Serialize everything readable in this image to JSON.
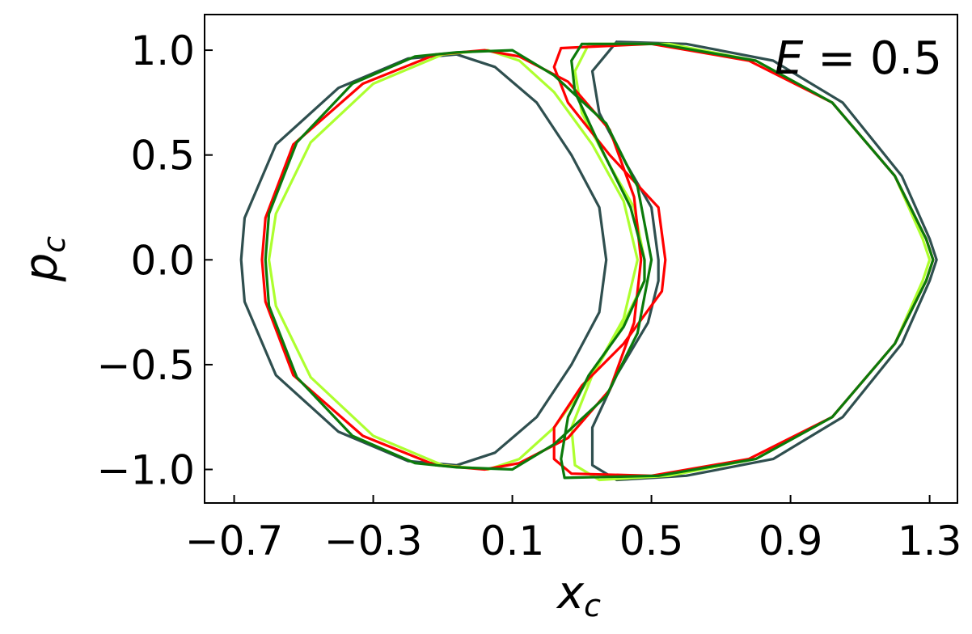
{
  "chart_data": {
    "type": "scatter",
    "xlabel": "x",
    "xlabel_sub": "c",
    "ylabel": "p",
    "ylabel_sub": "c",
    "xlim": [
      -0.785,
      1.38
    ],
    "ylim": [
      -1.16,
      1.17
    ],
    "xticks": [
      -0.7,
      -0.3,
      0.1,
      0.5,
      0.9,
      1.3
    ],
    "xtick_labels": [
      "−0.7",
      "−0.3",
      "0.1",
      "0.5",
      "0.9",
      "1.3"
    ],
    "yticks": [
      -1.0,
      -0.5,
      0.0,
      0.5,
      1.0
    ],
    "ytick_labels": [
      "−1.0",
      "−0.5",
      "0.0",
      "0.5",
      "1.0"
    ],
    "grid": false,
    "annotation": {
      "var": "E",
      "text": " = 0.5"
    },
    "series": [
      {
        "color": "#2f4f4f",
        "left_loop": [
          [
            -0.06,
            -0.98
          ],
          [
            -0.2,
            -0.96
          ],
          [
            -0.4,
            -0.82
          ],
          [
            -0.58,
            -0.55
          ],
          [
            -0.67,
            -0.2
          ],
          [
            -0.68,
            0.0
          ],
          [
            -0.67,
            0.2
          ],
          [
            -0.58,
            0.55
          ],
          [
            -0.4,
            0.82
          ],
          [
            -0.2,
            0.96
          ],
          [
            -0.06,
            0.98
          ],
          [
            0.05,
            0.92
          ],
          [
            0.17,
            0.75
          ],
          [
            0.27,
            0.5
          ],
          [
            0.35,
            0.25
          ],
          [
            0.37,
            0.0
          ],
          [
            0.35,
            -0.25
          ],
          [
            0.27,
            -0.5
          ],
          [
            0.17,
            -0.75
          ],
          [
            0.05,
            -0.92
          ],
          [
            -0.06,
            -0.98
          ]
        ],
        "right_loop": [
          [
            0.4,
            1.04
          ],
          [
            0.6,
            1.03
          ],
          [
            0.85,
            0.95
          ],
          [
            1.05,
            0.75
          ],
          [
            1.22,
            0.4
          ],
          [
            1.3,
            0.1
          ],
          [
            1.32,
            0.0
          ],
          [
            1.3,
            -0.1
          ],
          [
            1.22,
            -0.4
          ],
          [
            1.05,
            -0.75
          ],
          [
            0.85,
            -0.95
          ],
          [
            0.6,
            -1.03
          ],
          [
            0.4,
            -1.05
          ],
          [
            0.33,
            -0.98
          ],
          [
            0.33,
            -0.8
          ],
          [
            0.4,
            -0.55
          ],
          [
            0.49,
            -0.3
          ],
          [
            0.52,
            -0.1
          ],
          [
            0.52,
            0.0
          ],
          [
            0.5,
            0.25
          ],
          [
            0.43,
            0.45
          ],
          [
            0.35,
            0.7
          ],
          [
            0.33,
            0.9
          ],
          [
            0.4,
            1.04
          ]
        ]
      },
      {
        "color": "#adff2f",
        "left_loop": [
          [
            0.03,
            -1.0
          ],
          [
            -0.1,
            -0.98
          ],
          [
            -0.3,
            -0.84
          ],
          [
            -0.48,
            -0.56
          ],
          [
            -0.58,
            -0.22
          ],
          [
            -0.6,
            0.0
          ],
          [
            -0.58,
            0.22
          ],
          [
            -0.48,
            0.56
          ],
          [
            -0.3,
            0.84
          ],
          [
            -0.1,
            0.98
          ],
          [
            0.03,
            1.0
          ],
          [
            0.12,
            0.95
          ],
          [
            0.22,
            0.8
          ],
          [
            0.33,
            0.55
          ],
          [
            0.42,
            0.28
          ],
          [
            0.46,
            0.0
          ],
          [
            0.42,
            -0.28
          ],
          [
            0.33,
            -0.55
          ],
          [
            0.22,
            -0.8
          ],
          [
            0.12,
            -0.95
          ],
          [
            0.03,
            -1.0
          ]
        ],
        "right_loop": [
          [
            0.32,
            1.03
          ],
          [
            0.55,
            1.03
          ],
          [
            0.8,
            0.95
          ],
          [
            1.02,
            0.75
          ],
          [
            1.2,
            0.4
          ],
          [
            1.28,
            0.1
          ],
          [
            1.3,
            0.0
          ],
          [
            1.28,
            -0.1
          ],
          [
            1.2,
            -0.4
          ],
          [
            1.02,
            -0.75
          ],
          [
            0.8,
            -0.95
          ],
          [
            0.55,
            -1.03
          ],
          [
            0.35,
            -1.05
          ],
          [
            0.28,
            -0.98
          ],
          [
            0.27,
            -0.8
          ],
          [
            0.33,
            -0.55
          ],
          [
            0.42,
            -0.3
          ],
          [
            0.48,
            -0.1
          ],
          [
            0.48,
            0.0
          ],
          [
            0.45,
            0.25
          ],
          [
            0.38,
            0.45
          ],
          [
            0.3,
            0.7
          ],
          [
            0.28,
            0.9
          ],
          [
            0.32,
            1.03
          ]
        ]
      },
      {
        "color": "#ff0000",
        "left_loop": [
          [
            0.02,
            -1.0
          ],
          [
            -0.12,
            -0.98
          ],
          [
            -0.33,
            -0.84
          ],
          [
            -0.53,
            -0.55
          ],
          [
            -0.61,
            -0.2
          ],
          [
            -0.62,
            0.0
          ],
          [
            -0.61,
            0.2
          ],
          [
            -0.53,
            0.55
          ],
          [
            -0.33,
            0.84
          ],
          [
            -0.12,
            0.98
          ],
          [
            0.02,
            1.0
          ],
          [
            0.12,
            0.97
          ],
          [
            0.26,
            0.85
          ],
          [
            0.38,
            0.62
          ],
          [
            0.45,
            0.3
          ],
          [
            0.47,
            0.0
          ],
          [
            0.45,
            -0.3
          ],
          [
            0.38,
            -0.62
          ],
          [
            0.26,
            -0.85
          ],
          [
            0.12,
            -0.97
          ],
          [
            0.02,
            -1.0
          ]
        ],
        "right_loop": [
          [
            0.24,
            1.01
          ],
          [
            0.5,
            1.03
          ],
          [
            0.78,
            0.95
          ],
          [
            1.02,
            0.75
          ],
          [
            1.2,
            0.4
          ],
          [
            1.29,
            0.1
          ],
          [
            1.31,
            0.0
          ],
          [
            1.29,
            -0.1
          ],
          [
            1.2,
            -0.4
          ],
          [
            1.02,
            -0.75
          ],
          [
            0.78,
            -0.95
          ],
          [
            0.5,
            -1.03
          ],
          [
            0.27,
            -1.02
          ],
          [
            0.22,
            -0.95
          ],
          [
            0.22,
            -0.8
          ],
          [
            0.3,
            -0.6
          ],
          [
            0.42,
            -0.4
          ],
          [
            0.53,
            -0.15
          ],
          [
            0.54,
            0.0
          ],
          [
            0.52,
            0.25
          ],
          [
            0.38,
            0.5
          ],
          [
            0.26,
            0.75
          ],
          [
            0.22,
            0.92
          ],
          [
            0.24,
            1.01
          ]
        ]
      },
      {
        "color": "#0b7a0b",
        "left_loop": [
          [
            -0.06,
            -0.99
          ],
          [
            -0.18,
            -0.97
          ],
          [
            -0.36,
            -0.84
          ],
          [
            -0.52,
            -0.56
          ],
          [
            -0.6,
            -0.22
          ],
          [
            -0.61,
            0.0
          ],
          [
            -0.6,
            0.22
          ],
          [
            -0.52,
            0.56
          ],
          [
            -0.36,
            0.84
          ],
          [
            -0.18,
            0.97
          ],
          [
            -0.06,
            0.99
          ],
          [
            0.1,
            1.0
          ],
          [
            0.22,
            0.88
          ],
          [
            0.37,
            0.65
          ],
          [
            0.46,
            0.35
          ],
          [
            0.5,
            0.0
          ],
          [
            0.46,
            -0.35
          ],
          [
            0.37,
            -0.65
          ],
          [
            0.22,
            -0.88
          ],
          [
            0.1,
            -1.0
          ],
          [
            -0.06,
            -0.99
          ]
        ],
        "right_loop": [
          [
            0.3,
            1.03
          ],
          [
            0.52,
            1.03
          ],
          [
            0.8,
            0.95
          ],
          [
            1.02,
            0.75
          ],
          [
            1.2,
            0.4
          ],
          [
            1.29,
            0.1
          ],
          [
            1.31,
            0.0
          ],
          [
            1.29,
            -0.1
          ],
          [
            1.2,
            -0.4
          ],
          [
            1.02,
            -0.75
          ],
          [
            0.8,
            -0.95
          ],
          [
            0.52,
            -1.03
          ],
          [
            0.25,
            -1.04
          ],
          [
            0.24,
            -0.95
          ],
          [
            0.26,
            -0.75
          ],
          [
            0.32,
            -0.55
          ],
          [
            0.42,
            -0.32
          ],
          [
            0.48,
            -0.1
          ],
          [
            0.48,
            0.0
          ],
          [
            0.44,
            0.25
          ],
          [
            0.35,
            0.55
          ],
          [
            0.28,
            0.8
          ],
          [
            0.27,
            0.95
          ],
          [
            0.3,
            1.03
          ]
        ]
      }
    ]
  }
}
